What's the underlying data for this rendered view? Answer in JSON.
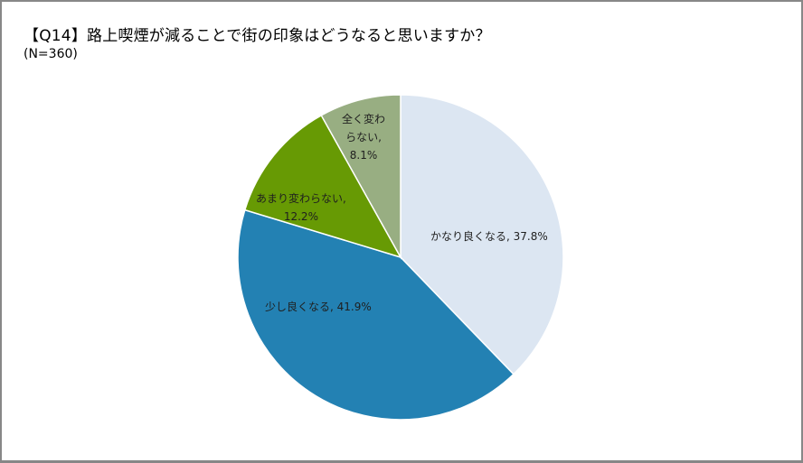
{
  "title": "【Q14】路上喫煙が減ることで街の印象はどうなると思いますか？",
  "subtitle": "(N=360)",
  "chart_data": {
    "type": "pie",
    "title": "【Q14】路上喫煙が減ることで街の印象はどうなると思いますか？",
    "subtitle": "(N=360)",
    "start_angle": "12 o'clock, clockwise",
    "categories": [
      "かなり良くなる",
      "少し良くなる",
      "あまり変わらない",
      "全く変わらない"
    ],
    "values": [
      37.8,
      41.9,
      12.2,
      8.1
    ],
    "unit": "%",
    "colors": [
      "#dce6f2",
      "#2381b3",
      "#679a04",
      "#98ae82"
    ],
    "data_labels": [
      "かなり良くなる, 37.8%",
      "少し良くなる, 41.9%",
      "あまり変わらない, 12.2%",
      "全く変わらない, 8.1%"
    ],
    "legend": "none"
  },
  "labels": {
    "s0": "かなり良くなる, 37.8%",
    "s1": "少し良くなる, 41.9%",
    "s2_line1": "あまり変わらない,",
    "s2_line2": "12.2%",
    "s3_line1": "全く変わ",
    "s3_line2": "らない,",
    "s3_line3": "8.1%"
  }
}
